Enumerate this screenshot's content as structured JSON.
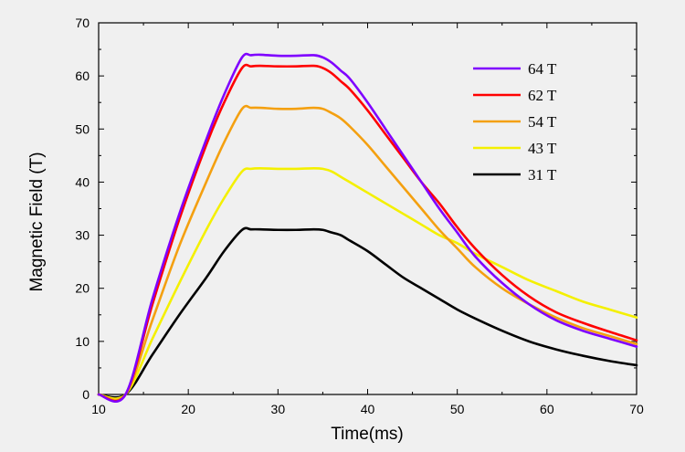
{
  "chart_data": {
    "type": "line",
    "title": "",
    "xlabel": "Time(ms)",
    "ylabel": "Magnetic Field (T)",
    "xlim": [
      10,
      70
    ],
    "ylim": [
      0,
      70
    ],
    "xticks": [
      10,
      20,
      30,
      40,
      50,
      60,
      70
    ],
    "yticks": [
      0,
      10,
      20,
      30,
      40,
      50,
      60,
      70
    ],
    "grid": false,
    "legend_position": "top-right",
    "series": [
      {
        "name": "64 T",
        "color": "#7f00ff",
        "x": [
          10,
          13,
          16,
          19,
          22,
          24,
          26,
          27,
          28,
          30,
          32,
          34,
          35,
          36,
          37,
          38,
          40,
          42,
          44,
          46,
          48,
          50,
          52,
          55,
          58,
          61,
          64,
          67,
          70
        ],
        "y": [
          0,
          0,
          18,
          34,
          48,
          56.5,
          63.5,
          63.9,
          64,
          63.8,
          63.8,
          63.9,
          63.5,
          62.5,
          61,
          59.5,
          55,
          50,
          45,
          40,
          35,
          30.5,
          26,
          21,
          17,
          14,
          12,
          10.5,
          9
        ]
      },
      {
        "name": "62 T",
        "color": "#ff0000",
        "x": [
          10,
          13,
          16,
          19,
          22,
          24,
          26,
          27,
          28,
          30,
          32,
          34,
          35,
          36,
          37,
          38,
          40,
          42,
          44,
          46,
          48,
          50,
          52,
          55,
          58,
          61,
          64,
          67,
          70
        ],
        "y": [
          0,
          0,
          17,
          33,
          47,
          55,
          61.5,
          61.8,
          61.9,
          61.8,
          61.8,
          61.9,
          61.5,
          60.5,
          59,
          57.5,
          53.5,
          49,
          44.5,
          40,
          36,
          31.5,
          27.5,
          22.5,
          18.5,
          15.5,
          13.5,
          11.8,
          10.2
        ]
      },
      {
        "name": "54 T",
        "color": "#f4a010",
        "x": [
          10,
          13,
          16,
          19,
          22,
          24,
          26,
          27,
          28,
          30,
          32,
          34,
          35,
          36,
          37,
          38,
          40,
          42,
          44,
          46,
          48,
          50,
          52,
          55,
          58,
          61,
          64,
          67,
          70
        ],
        "y": [
          0,
          0,
          14,
          28,
          40,
          47.5,
          53.8,
          54,
          54,
          53.8,
          53.8,
          54,
          53.8,
          53,
          52,
          50.5,
          47,
          43,
          39,
          35,
          31,
          27.5,
          24,
          20,
          17,
          14.5,
          12.5,
          11,
          9.5
        ]
      },
      {
        "name": "43 T",
        "color": "#f4f000",
        "x": [
          10,
          13,
          16,
          19,
          22,
          24,
          26,
          27,
          28,
          30,
          32,
          34,
          35,
          36,
          37,
          38,
          40,
          42,
          44,
          46,
          48,
          50,
          52,
          55,
          58,
          61,
          64,
          67,
          70
        ],
        "y": [
          0,
          0,
          10.5,
          21,
          31,
          37,
          42,
          42.5,
          42.6,
          42.5,
          42.5,
          42.6,
          42.5,
          42,
          41,
          40,
          38,
          36,
          34,
          32,
          30,
          28.5,
          26.5,
          24,
          21.5,
          19.5,
          17.5,
          16,
          14.5
        ]
      },
      {
        "name": "31 T",
        "color": "#000000",
        "x": [
          10,
          13,
          16,
          19,
          22,
          24,
          26,
          27,
          28,
          30,
          32,
          34,
          35,
          36,
          37,
          38,
          40,
          42,
          44,
          46,
          48,
          50,
          52,
          55,
          58,
          61,
          64,
          67,
          70
        ],
        "y": [
          0,
          0,
          7.5,
          15,
          22,
          27,
          31,
          31.1,
          31.1,
          31,
          31,
          31.1,
          31,
          30.5,
          30,
          29,
          27,
          24.5,
          22,
          20,
          18,
          16,
          14.3,
          12,
          10,
          8.5,
          7.3,
          6.3,
          5.5
        ]
      }
    ]
  }
}
